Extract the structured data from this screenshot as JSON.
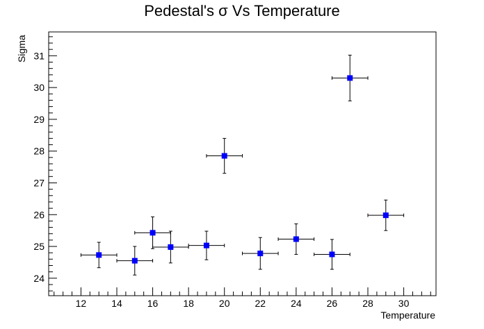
{
  "chart_data": {
    "type": "scatter",
    "title": "Pedestal's σ Vs Temperature",
    "xlabel": "Temperature",
    "ylabel": "Sigma",
    "xlim": [
      10.2,
      31.8
    ],
    "ylim": [
      23.45,
      31.75
    ],
    "x_ticks": [
      12,
      14,
      16,
      18,
      20,
      22,
      24,
      26,
      28,
      30
    ],
    "y_ticks": [
      24,
      25,
      26,
      27,
      28,
      29,
      30,
      31
    ],
    "grid": false,
    "marker_color": "#0000ff",
    "points": [
      {
        "x": 13,
        "y": 24.73,
        "xerr": 1,
        "yerr": 0.4
      },
      {
        "x": 15,
        "y": 24.55,
        "xerr": 1,
        "yerr": 0.45
      },
      {
        "x": 16,
        "y": 25.43,
        "xerr": 1,
        "yerr": 0.5
      },
      {
        "x": 17,
        "y": 24.98,
        "xerr": 1,
        "yerr": 0.5
      },
      {
        "x": 19,
        "y": 25.03,
        "xerr": 1,
        "yerr": 0.45
      },
      {
        "x": 20,
        "y": 27.85,
        "xerr": 1,
        "yerr": 0.55
      },
      {
        "x": 22,
        "y": 24.78,
        "xerr": 1,
        "yerr": 0.5
      },
      {
        "x": 24,
        "y": 25.23,
        "xerr": 1,
        "yerr": 0.48
      },
      {
        "x": 26,
        "y": 24.75,
        "xerr": 1,
        "yerr": 0.47
      },
      {
        "x": 27,
        "y": 30.3,
        "xerr": 1,
        "yerr": 0.72
      },
      {
        "x": 29,
        "y": 25.98,
        "xerr": 1,
        "yerr": 0.48
      }
    ]
  }
}
